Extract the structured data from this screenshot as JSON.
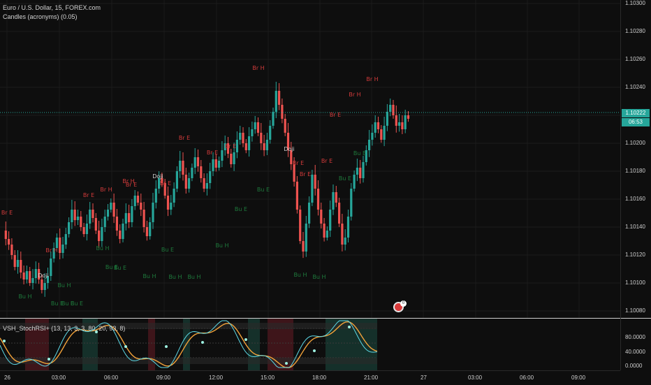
{
  "header": {
    "symbol_title": "Euro / U.S. Dollar, 15, FOREX.com",
    "indicator_title": "Candles (acronyms) (0.05)"
  },
  "oscillator": {
    "title": "VSH_StochRSI+ (13, 13, 3, 3, 80, 20, 93, 8)"
  },
  "current_price": {
    "value": "1.10222",
    "countdown": "06:53"
  },
  "price_scale": [
    "1.10300",
    "1.10280",
    "1.10260",
    "1.10240",
    "1.10220",
    "1.10200",
    "1.10180",
    "1.10160",
    "1.10140",
    "1.10120",
    "1.10100",
    "1.10080"
  ],
  "osc_scale": [
    "80.0000",
    "40.0000",
    "0.0000"
  ],
  "time_labels": [
    "26",
    "03:00",
    "06:00",
    "09:00",
    "12:00",
    "15:00",
    "18:00",
    "21:00",
    "27",
    "03:00",
    "06:00",
    "09:00"
  ],
  "annotations": [
    {
      "text": "Br E",
      "kind": "bear"
    },
    {
      "text": "Br H",
      "kind": "bear"
    },
    {
      "text": "Doji",
      "kind": "doji"
    },
    {
      "text": "Bu H",
      "kind": "bull"
    },
    {
      "text": "Bu E",
      "kind": "bull"
    },
    {
      "text": "Bu H",
      "kind": "bull"
    },
    {
      "text": "Bu E",
      "kind": "bull"
    },
    {
      "text": "Br E",
      "kind": "bear"
    },
    {
      "text": "Bu H",
      "kind": "bull"
    },
    {
      "text": "Bu E",
      "kind": "bull"
    },
    {
      "text": "Bu E",
      "kind": "bull"
    },
    {
      "text": "Br H",
      "kind": "bear"
    },
    {
      "text": "Br E",
      "kind": "bear"
    },
    {
      "text": "Bu E",
      "kind": "bull"
    },
    {
      "text": "Bu H",
      "kind": "bull"
    },
    {
      "text": "Doji",
      "kind": "doji"
    },
    {
      "text": "Br E",
      "kind": "bear"
    },
    {
      "text": "Br E",
      "kind": "bear"
    },
    {
      "text": "Bu H",
      "kind": "bull"
    },
    {
      "text": "Bu H",
      "kind": "bull"
    },
    {
      "text": "Br E",
      "kind": "bear"
    },
    {
      "text": "Br E",
      "kind": "bear"
    },
    {
      "text": "Bu E",
      "kind": "bull"
    },
    {
      "text": "Bu E",
      "kind": "bull"
    },
    {
      "text": "Bu H",
      "kind": "bull"
    },
    {
      "text": "Br H",
      "kind": "bear"
    },
    {
      "text": "Doji",
      "kind": "doji"
    },
    {
      "text": "Br H",
      "kind": "bear"
    },
    {
      "text": "Br E",
      "kind": "bear"
    },
    {
      "text": "Br E",
      "kind": "bear"
    },
    {
      "text": "Bu H",
      "kind": "bull"
    },
    {
      "text": "Bu E",
      "kind": "bull"
    },
    {
      "text": "Br E",
      "kind": "bear"
    },
    {
      "text": "Bu E",
      "kind": "bull"
    },
    {
      "text": "Br H",
      "kind": "bear"
    },
    {
      "text": "Br E",
      "kind": "bear"
    },
    {
      "text": "Bu E",
      "kind": "bull"
    },
    {
      "text": "Br H",
      "kind": "bear"
    },
    {
      "text": "Bu H",
      "kind": "bull"
    }
  ],
  "colors": {
    "bull": "#26a69a",
    "bear": "#ef5350",
    "bull_label": "#1e7a3c",
    "bear_label": "#d23b3b",
    "doji": "#cfcfcf",
    "osc_fast": "#5dd9e6",
    "osc_slow": "#f2a23a"
  },
  "icons": {
    "event_flag": "us-flag-event-icon"
  }
}
